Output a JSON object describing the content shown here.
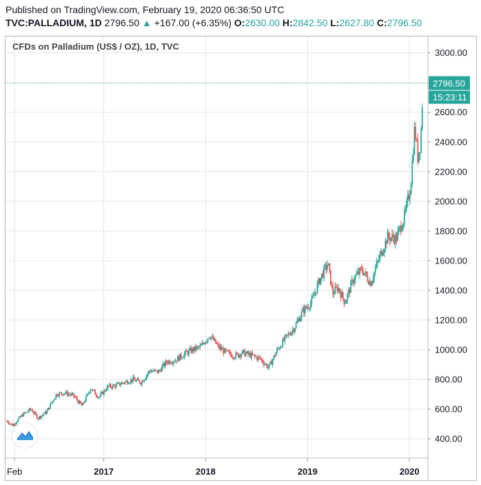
{
  "header": {
    "published": "Published on TradingView.com, February 19, 2020 06:36:50 UTC",
    "symbol": "TVC:PALLADIUM, 1D",
    "last": "2796.50",
    "change": "+167.00 (+6.35%)",
    "o_label": "O:",
    "o_value": "2630.00",
    "h_label": "H:",
    "h_value": "2842.50",
    "l_label": "L:",
    "l_value": "2627.80",
    "c_label": "C:",
    "c_value": "2796.50"
  },
  "chart_data": {
    "type": "candlestick",
    "title": "CFDs on Palladium (US$ / OZ), 1D, TVC",
    "ylim": [
      270,
      3110
    ],
    "y_ticks": [
      400,
      600,
      800,
      1000,
      1200,
      1400,
      1600,
      1800,
      2000,
      2200,
      2400,
      2600,
      2800,
      3000
    ],
    "y_tick_labels": [
      "400.00",
      "600.00",
      "800.00",
      "1000.00",
      "1200.00",
      "1400.00",
      "1600.00",
      "1800.00",
      "2000.00",
      "2200.00",
      "2400.00",
      "2600.00",
      "2800.00",
      "3000.00"
    ],
    "x_tick_labels": [
      "Feb",
      "2017",
      "2018",
      "2019",
      "2020"
    ],
    "x_tick_dates": [
      "2016-02-01",
      "2017-01-01",
      "2018-01-01",
      "2019-01-01",
      "2020-01-01"
    ],
    "x_range": [
      "2016-01-20",
      "2020-02-19"
    ],
    "last_price": 2796.5,
    "last_price_label": "2796.50",
    "countdown_label": "15:23:11",
    "grid": true,
    "colors": {
      "up": "#26a69a",
      "down": "#ef5350",
      "grid": "#e6e6e6",
      "last_line": "#26a69a"
    },
    "series": [
      {
        "date": "2016-01-20",
        "close": 520
      },
      {
        "date": "2016-02-10",
        "close": 490
      },
      {
        "date": "2016-03-15",
        "close": 560
      },
      {
        "date": "2016-04-15",
        "close": 600
      },
      {
        "date": "2016-05-10",
        "close": 540
      },
      {
        "date": "2016-06-10",
        "close": 580
      },
      {
        "date": "2016-07-15",
        "close": 700
      },
      {
        "date": "2016-08-15",
        "close": 710
      },
      {
        "date": "2016-09-15",
        "close": 690
      },
      {
        "date": "2016-10-15",
        "close": 620
      },
      {
        "date": "2016-11-15",
        "close": 740
      },
      {
        "date": "2016-12-15",
        "close": 680
      },
      {
        "date": "2017-01-15",
        "close": 750
      },
      {
        "date": "2017-02-15",
        "close": 760
      },
      {
        "date": "2017-03-15",
        "close": 780
      },
      {
        "date": "2017-04-15",
        "close": 800
      },
      {
        "date": "2017-05-15",
        "close": 780
      },
      {
        "date": "2017-06-15",
        "close": 860
      },
      {
        "date": "2017-07-15",
        "close": 850
      },
      {
        "date": "2017-08-15",
        "close": 920
      },
      {
        "date": "2017-09-15",
        "close": 930
      },
      {
        "date": "2017-10-15",
        "close": 970
      },
      {
        "date": "2017-11-15",
        "close": 1000
      },
      {
        "date": "2017-12-15",
        "close": 1020
      },
      {
        "date": "2018-01-15",
        "close": 1100
      },
      {
        "date": "2018-02-15",
        "close": 1020
      },
      {
        "date": "2018-03-15",
        "close": 980
      },
      {
        "date": "2018-04-15",
        "close": 960
      },
      {
        "date": "2018-05-15",
        "close": 980
      },
      {
        "date": "2018-06-15",
        "close": 960
      },
      {
        "date": "2018-07-15",
        "close": 940
      },
      {
        "date": "2018-08-15",
        "close": 880
      },
      {
        "date": "2018-09-15",
        "close": 1000
      },
      {
        "date": "2018-10-15",
        "close": 1080
      },
      {
        "date": "2018-11-15",
        "close": 1150
      },
      {
        "date": "2018-12-15",
        "close": 1260
      },
      {
        "date": "2019-01-15",
        "close": 1320
      },
      {
        "date": "2019-02-15",
        "close": 1480
      },
      {
        "date": "2019-03-15",
        "close": 1580
      },
      {
        "date": "2019-04-01",
        "close": 1380
      },
      {
        "date": "2019-04-20",
        "close": 1420
      },
      {
        "date": "2019-05-15",
        "close": 1320
      },
      {
        "date": "2019-06-15",
        "close": 1480
      },
      {
        "date": "2019-07-15",
        "close": 1540
      },
      {
        "date": "2019-08-15",
        "close": 1450
      },
      {
        "date": "2019-09-15",
        "close": 1620
      },
      {
        "date": "2019-10-15",
        "close": 1760
      },
      {
        "date": "2019-11-15",
        "close": 1750
      },
      {
        "date": "2019-12-15",
        "close": 1900
      },
      {
        "date": "2020-01-05",
        "close": 2100
      },
      {
        "date": "2020-01-20",
        "close": 2500
      },
      {
        "date": "2020-01-31",
        "close": 2300
      },
      {
        "date": "2020-02-10",
        "close": 2400
      },
      {
        "date": "2020-02-19",
        "close": 2796.5
      }
    ]
  }
}
